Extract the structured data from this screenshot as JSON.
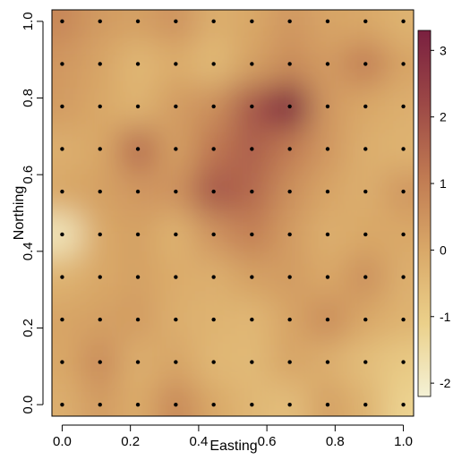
{
  "chart_data": {
    "type": "heatmap",
    "xlabel": "Easting",
    "ylabel": "Northing",
    "xlim": [
      -0.03,
      1.03
    ],
    "ylim": [
      -0.03,
      1.03
    ],
    "x_ticks": [
      "0.0",
      "0.2",
      "0.4",
      "0.6",
      "0.8",
      "1.0"
    ],
    "y_ticks": [
      "0.0",
      "0.2",
      "0.4",
      "0.6",
      "0.8",
      "1.0"
    ],
    "colorbar": {
      "range": [
        -2.2,
        3.3
      ],
      "ticks": [
        "-2",
        "-1",
        "0",
        "1",
        "2",
        "3"
      ],
      "colors": [
        "#F4F1D5",
        "#EBD08A",
        "#D9A868",
        "#C07A52",
        "#9C4846",
        "#7A2040"
      ]
    },
    "grid_x": [
      0.0,
      0.111,
      0.222,
      0.333,
      0.444,
      0.556,
      0.667,
      0.778,
      0.889,
      1.0
    ],
    "grid_y": [
      0.0,
      0.111,
      0.222,
      0.333,
      0.444,
      0.556,
      0.667,
      0.778,
      0.889,
      1.0
    ],
    "values": [
      [
        -0.2,
        0.3,
        -0.1,
        0.8,
        0.0,
        -0.4,
        -0.6,
        0.2,
        -0.3,
        -1.2
      ],
      [
        0.0,
        0.7,
        -0.2,
        0.1,
        -0.4,
        -0.5,
        0.1,
        -0.2,
        -0.6,
        -0.9
      ],
      [
        0.1,
        0.2,
        0.3,
        -0.2,
        -0.3,
        -0.4,
        0.1,
        0.7,
        0.0,
        -0.3
      ],
      [
        -0.3,
        0.0,
        0.2,
        -0.1,
        -0.2,
        0.2,
        0.3,
        0.0,
        0.6,
        -0.2
      ],
      [
        -1.8,
        0.0,
        0.2,
        -0.3,
        0.5,
        1.0,
        0.3,
        -0.2,
        0.0,
        0.0
      ],
      [
        0.0,
        0.2,
        0.4,
        0.5,
        1.9,
        1.5,
        0.6,
        0.1,
        -0.2,
        0.4
      ],
      [
        -0.2,
        0.0,
        1.4,
        0.2,
        1.2,
        1.7,
        1.1,
        0.4,
        -0.2,
        -0.3
      ],
      [
        0.3,
        0.0,
        -0.3,
        0.3,
        0.6,
        1.9,
        3.2,
        0.4,
        0.0,
        -0.2
      ],
      [
        0.4,
        0.1,
        -0.4,
        -0.1,
        -0.5,
        0.2,
        0.7,
        0.3,
        1.0,
        0.1
      ],
      [
        0.8,
        0.3,
        0.2,
        0.5,
        -0.2,
        0.0,
        0.4,
        0.1,
        0.0,
        -0.3
      ]
    ]
  }
}
